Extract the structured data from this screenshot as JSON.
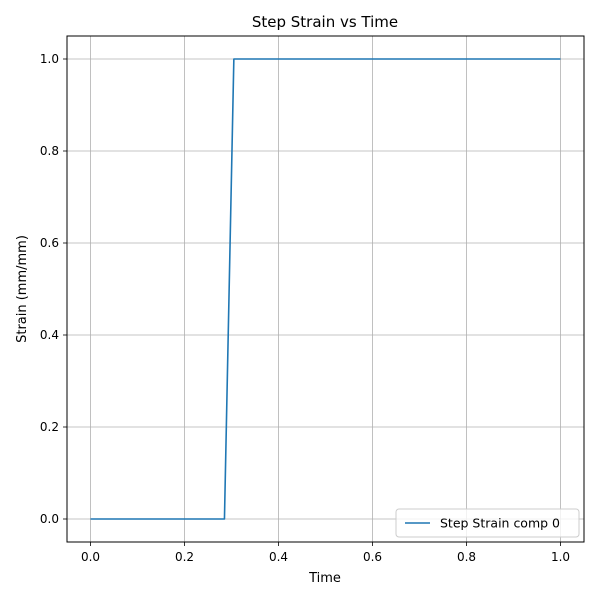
{
  "chart_data": {
    "type": "line",
    "title": "Step Strain vs Time",
    "xlabel": "Time",
    "ylabel": "Strain (mm/mm)",
    "xlim": [
      -0.05,
      1.05
    ],
    "ylim": [
      -0.05,
      1.05
    ],
    "xticks": [
      0.0,
      0.2,
      0.4,
      0.6,
      0.8,
      1.0
    ],
    "xtick_labels": [
      "0.0",
      "0.2",
      "0.4",
      "0.6",
      "0.8",
      "1.0"
    ],
    "yticks": [
      0.0,
      0.2,
      0.4,
      0.6,
      0.8,
      1.0
    ],
    "ytick_labels": [
      "0.0",
      "0.2",
      "0.4",
      "0.6",
      "0.8",
      "1.0"
    ],
    "grid": true,
    "legend_position": "lower-right",
    "series": [
      {
        "name": "Step Strain comp 0",
        "color": "#1f77b4",
        "x": [
          0.0,
          0.285,
          0.305,
          1.0
        ],
        "y": [
          0.0,
          0.0,
          1.0,
          1.0
        ]
      }
    ]
  }
}
